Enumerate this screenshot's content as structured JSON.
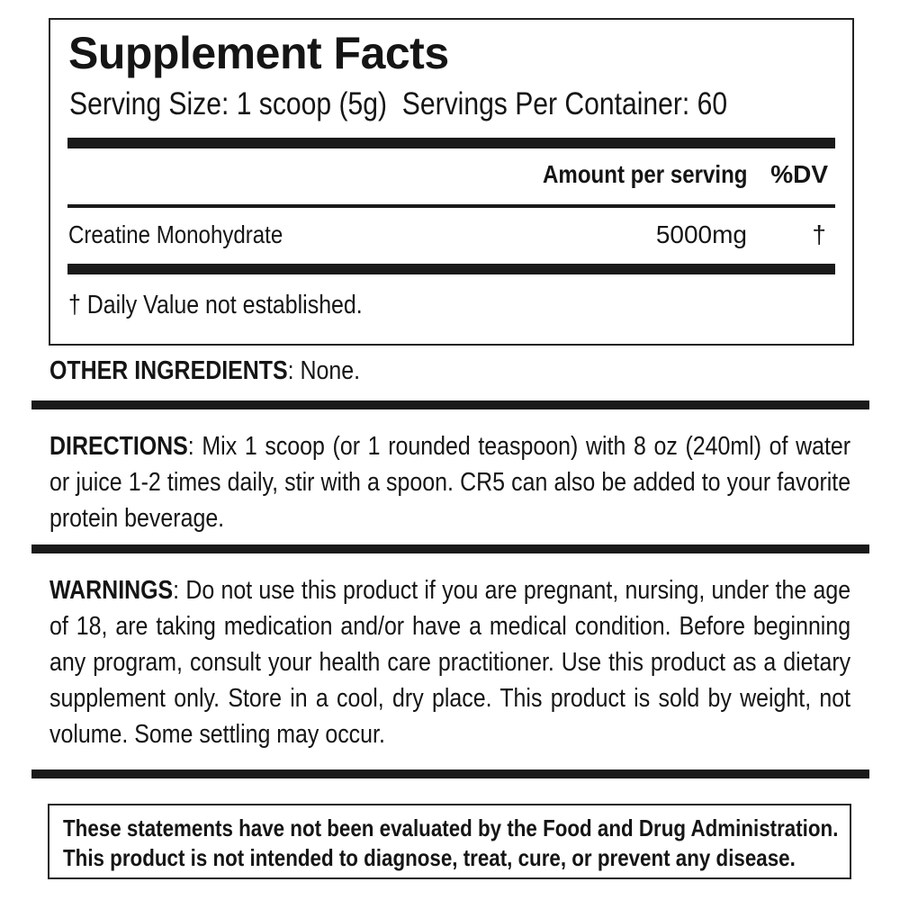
{
  "facts": {
    "title": "Supplement Facts",
    "serving_size": "Serving Size: 1 scoop (5g)",
    "servings_per_container": "Servings Per Container: 60",
    "columns": [
      "Amount per serving",
      "%DV"
    ],
    "rows": [
      [
        "Creatine Monohydrate",
        "5000mg",
        "†"
      ]
    ],
    "footnote": "† Daily Value not established."
  },
  "other_ingredients": {
    "label": "OTHER INGREDIENTS",
    "text": ": None."
  },
  "directions": {
    "label": "DIRECTIONS",
    "text": ": Mix 1 scoop (or 1 rounded teaspoon) with 8 oz (240ml) of water or juice 1-2 times daily, stir with a spoon. CR5 can also be added to your favorite protein beverage."
  },
  "warnings": {
    "label": "WARNINGS",
    "text": ": Do not use this product if you are pregnant, nursing, under the age of 18, are taking medication and/or have a medical condition. Before beginning any program, consult your health care practitioner. Use this product as a dietary supplement only. Store in a cool, dry place. This product is sold by weight, not volume. Some settling may occur."
  },
  "disclaimer": [
    "These statements have not been evaluated by the Food and Drug Administration.",
    "This product is not intended to diagnose, treat, cure, or prevent any disease."
  ]
}
